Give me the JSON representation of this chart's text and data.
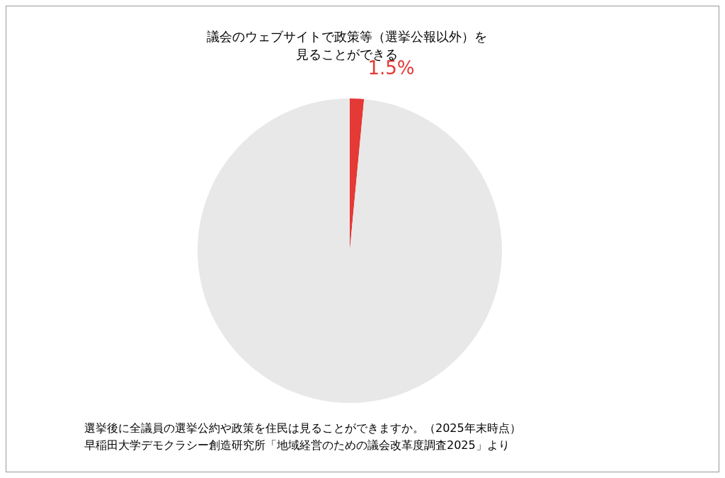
{
  "chart_data": {
    "type": "pie",
    "title": "議会のウェブサイトで政策等（選挙公報以外）を見ることができる",
    "categories": [
      null,
      null
    ],
    "values": [
      1.5,
      98.5
    ],
    "colors": [
      "#e53935",
      "#e8e8e8"
    ],
    "value_labels": [
      "1.5%",
      null
    ],
    "legend": false,
    "annotations": [
      "選挙後に全議員の選挙公約や政策を住民は見ることができますか。（2025年末時点）",
      "早稲田大学デモクラシー創造研究所「地域経営のための議会改革度調査2025」より"
    ]
  }
}
